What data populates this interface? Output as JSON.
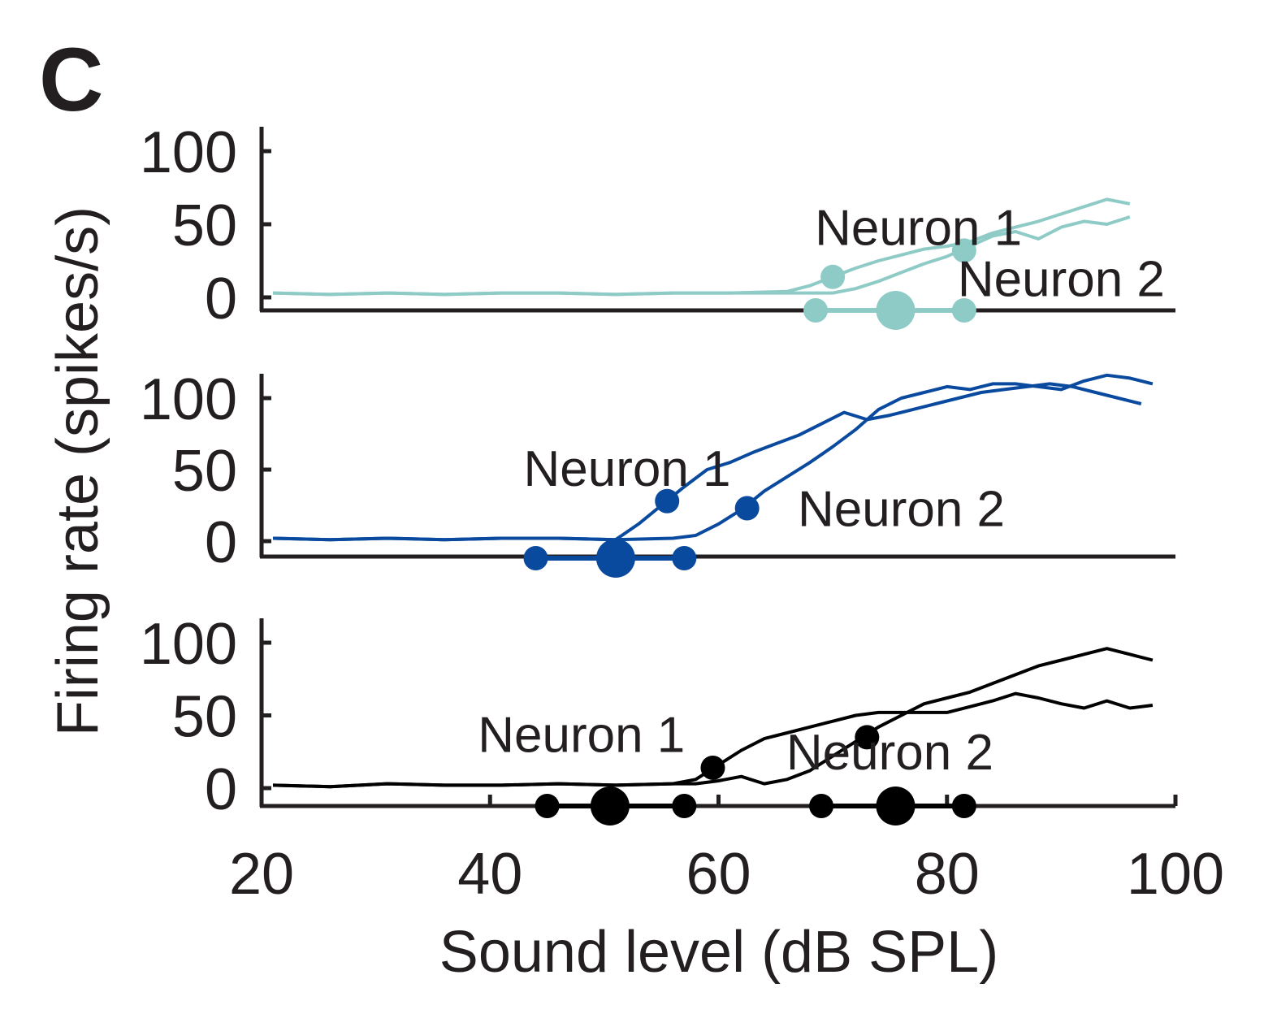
{
  "figure": {
    "panel_letter": "C",
    "ylabel": "Firing rate (spikes/s)",
    "xlabel": "Sound level (dB SPL)"
  },
  "chart_data": [
    {
      "type": "line",
      "panel": "top",
      "color": "#8fcbc6",
      "xlim": [
        20,
        100
      ],
      "ylim": [
        0,
        100
      ],
      "yticks": [
        0,
        50,
        100
      ],
      "series": [
        {
          "name": "Neuron 1",
          "x": [
            21,
            26,
            31,
            36,
            41,
            46,
            51,
            56,
            61,
            66,
            68,
            70,
            72,
            74,
            76,
            78,
            80,
            82,
            84,
            86,
            88,
            90,
            92,
            94,
            96
          ],
          "y": [
            3,
            2,
            3,
            2,
            3,
            3,
            2,
            3,
            3,
            4,
            8,
            14,
            20,
            25,
            29,
            33,
            35,
            38,
            44,
            48,
            52,
            57,
            62,
            67,
            64
          ]
        },
        {
          "name": "Neuron 2",
          "x": [
            21,
            26,
            31,
            36,
            41,
            46,
            51,
            56,
            61,
            66,
            68,
            70,
            72,
            74,
            76,
            78,
            80,
            82,
            84,
            86,
            88,
            90,
            92,
            94,
            96
          ],
          "y": [
            3,
            2,
            3,
            2,
            3,
            3,
            2,
            3,
            3,
            3,
            3,
            3,
            6,
            11,
            17,
            23,
            28,
            35,
            42,
            45,
            40,
            48,
            52,
            50,
            55
          ]
        }
      ],
      "markers": [
        {
          "series": "Neuron 1",
          "x": 70,
          "y": 14
        },
        {
          "series": "Neuron 2",
          "x": 81.5,
          "y": 32
        }
      ],
      "range_bar": {
        "x_start": 68.5,
        "x_end": 81.5,
        "x_center": 75.5
      },
      "annotations": [
        {
          "text": "Neuron 1",
          "x": 77.5,
          "y": 47
        },
        {
          "text": "Neuron 2",
          "x": 90,
          "y": 12
        }
      ]
    },
    {
      "type": "line",
      "panel": "middle",
      "color": "#0a4a9e",
      "xlim": [
        20,
        100
      ],
      "ylim": [
        0,
        100
      ],
      "yticks": [
        0,
        50,
        100
      ],
      "series": [
        {
          "name": "Neuron 1",
          "x": [
            21,
            26,
            31,
            36,
            41,
            46,
            51,
            53,
            55,
            57,
            59,
            61,
            63,
            65,
            67,
            69,
            71,
            73,
            75,
            77,
            79,
            81,
            83,
            85,
            87,
            89,
            91,
            93,
            95,
            97
          ],
          "y": [
            2,
            1,
            2,
            1,
            2,
            2,
            1,
            12,
            25,
            38,
            50,
            55,
            62,
            68,
            74,
            82,
            90,
            85,
            88,
            92,
            96,
            100,
            104,
            106,
            108,
            110,
            108,
            104,
            100,
            96
          ]
        },
        {
          "name": "Neuron 2",
          "x": [
            21,
            26,
            31,
            36,
            41,
            46,
            51,
            56,
            58,
            60,
            62,
            64,
            66,
            68,
            70,
            72,
            74,
            76,
            78,
            80,
            82,
            84,
            86,
            88,
            90,
            92,
            94,
            96,
            98
          ],
          "y": [
            2,
            1,
            2,
            1,
            2,
            2,
            1,
            2,
            4,
            12,
            22,
            35,
            45,
            55,
            66,
            78,
            92,
            100,
            104,
            108,
            106,
            110,
            110,
            108,
            106,
            112,
            116,
            114,
            110
          ]
        }
      ],
      "markers": [
        {
          "series": "Neuron 1",
          "x": 55.5,
          "y": 28
        },
        {
          "series": "Neuron 2",
          "x": 62.5,
          "y": 23
        }
      ],
      "range_bar": {
        "x_start": 44,
        "x_end": 57,
        "x_center": 51
      },
      "annotations": [
        {
          "text": "Neuron 1",
          "x": 52,
          "y": 50
        },
        {
          "text": "Neuron 2",
          "x": 76,
          "y": 22
        }
      ]
    },
    {
      "type": "line",
      "panel": "bottom",
      "color": "#000000",
      "xlim": [
        20,
        100
      ],
      "ylim": [
        0,
        100
      ],
      "yticks": [
        0,
        50,
        100
      ],
      "xticks": [
        20,
        40,
        60,
        80,
        100
      ],
      "series": [
        {
          "name": "Neuron 1",
          "x": [
            21,
            26,
            31,
            36,
            41,
            46,
            51,
            56,
            58,
            60,
            62,
            64,
            66,
            68,
            70,
            72,
            74,
            76,
            78,
            80,
            82,
            84,
            86,
            88,
            90,
            92,
            94,
            96,
            98
          ],
          "y": [
            2,
            1,
            3,
            2,
            2,
            3,
            2,
            3,
            6,
            16,
            26,
            34,
            38,
            42,
            46,
            50,
            52,
            52,
            52,
            52,
            56,
            60,
            65,
            62,
            58,
            55,
            60,
            55,
            57
          ]
        },
        {
          "name": "Neuron 2",
          "x": [
            21,
            26,
            31,
            36,
            41,
            46,
            51,
            56,
            58,
            60,
            62,
            64,
            66,
            68,
            70,
            72,
            74,
            76,
            78,
            80,
            82,
            84,
            86,
            88,
            90,
            92,
            94,
            96,
            98
          ],
          "y": [
            2,
            1,
            3,
            2,
            2,
            3,
            2,
            3,
            3,
            5,
            8,
            3,
            6,
            12,
            22,
            32,
            42,
            50,
            58,
            62,
            66,
            72,
            78,
            84,
            88,
            92,
            96,
            92,
            88
          ]
        }
      ],
      "markers": [
        {
          "series": "Neuron 1",
          "x": 59.5,
          "y": 14
        },
        {
          "series": "Neuron 2",
          "x": 73,
          "y": 35
        }
      ],
      "range_bars": [
        {
          "x_start": 45,
          "x_end": 57,
          "x_center": 50.5
        },
        {
          "x_start": 69,
          "x_end": 81.5,
          "x_center": 75.5
        }
      ],
      "annotations": [
        {
          "text": "Neuron 1",
          "x": 48,
          "y": 36
        },
        {
          "text": "Neuron 2",
          "x": 75,
          "y": 24
        }
      ]
    }
  ]
}
